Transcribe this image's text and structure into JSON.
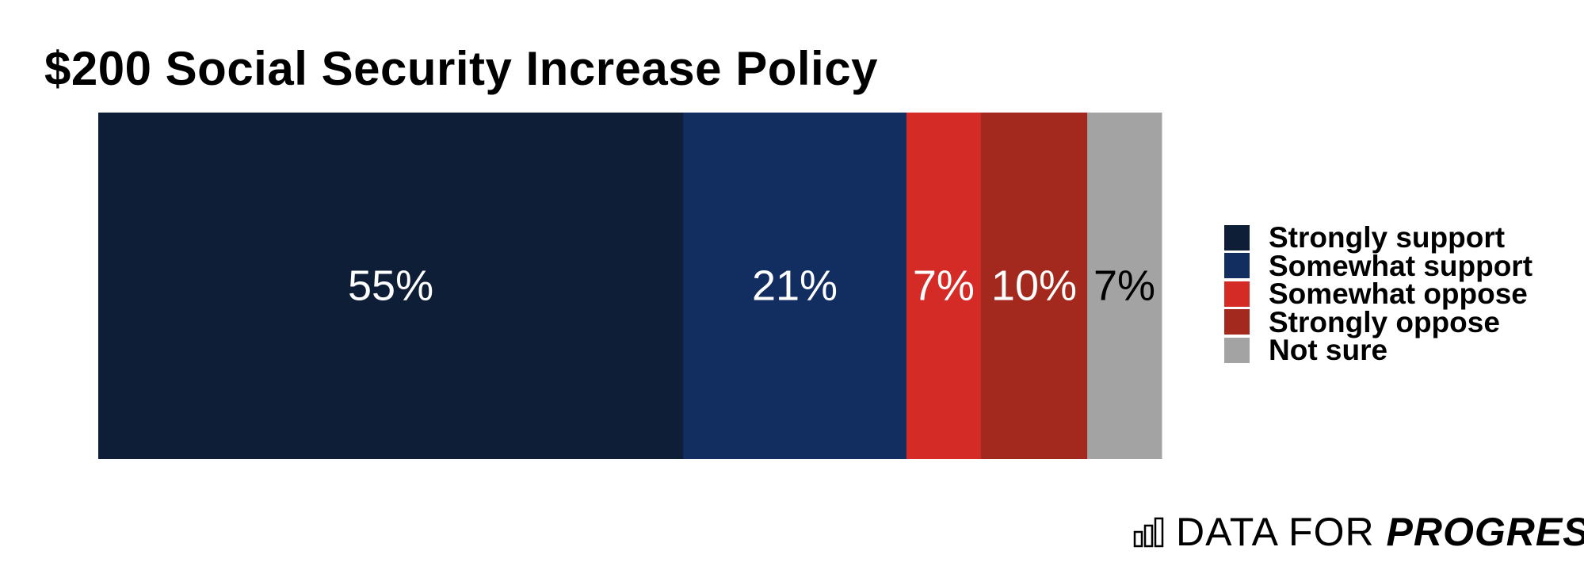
{
  "chart_data": {
    "type": "bar",
    "orientation": "horizontal-stacked",
    "title": "$200 Social Security Increase Policy",
    "categories": [
      "Strongly support",
      "Somewhat support",
      "Somewhat oppose",
      "Strongly oppose",
      "Not sure"
    ],
    "values": [
      55,
      21,
      7,
      10,
      7
    ],
    "labels": [
      "55%",
      "21%",
      "7%",
      "10%",
      "7%"
    ],
    "colors": [
      "#0e1e36",
      "#122e61",
      "#d42b27",
      "#a3281e",
      "#a3a3a3"
    ],
    "label_colors": [
      "#ffffff",
      "#ffffff",
      "#ffffff",
      "#ffffff",
      "#000000"
    ],
    "xlabel": "",
    "ylabel": "",
    "legend_position": "right"
  },
  "brand": {
    "name_part1": "DATA FOR ",
    "name_part2": "PROGRESS",
    "icon": "bar-chart-icon"
  }
}
